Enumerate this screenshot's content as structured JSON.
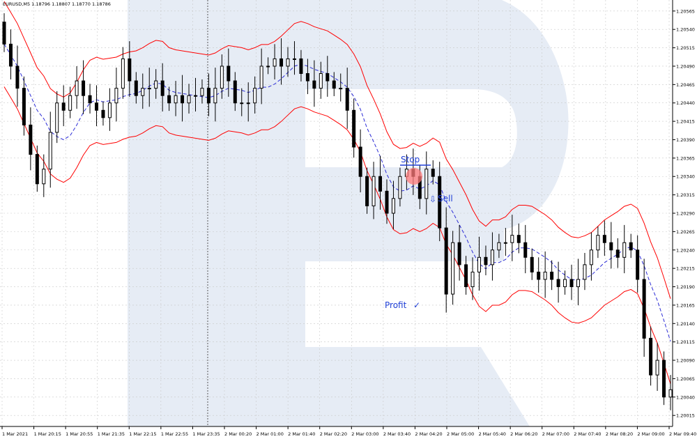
{
  "colors": {
    "watermark": "#e6ecf5",
    "grid": "#c8c8c8",
    "band": "#ff0000",
    "middle_line": "#2b2bd6",
    "candle": "#000000",
    "annotation": "#1f3fd6",
    "highlight": "#ff7a7a"
  },
  "chart_data": {
    "type": "candlestick",
    "title": "EURUSD,M5  1.18796  1.18807  1.18770  1.18786",
    "ylim": [
      1.2,
      1.2058
    ],
    "y_ticks": [
      "1.20565",
      "1.20540",
      "1.20515",
      "1.20490",
      "1.20465",
      "1.20440",
      "1.20415",
      "1.20390",
      "1.20365",
      "1.20340",
      "1.20315",
      "1.20290",
      "1.20265",
      "1.20240",
      "1.20215",
      "1.20190",
      "1.20165",
      "1.20140",
      "1.20115",
      "1.20090",
      "1.20065",
      "1.20040",
      "1.20015"
    ],
    "x_ticks": [
      "1 Mar 2021",
      "1 Mar 20:15",
      "1 Mar 20:55",
      "1 Mar 21:35",
      "1 Mar 22:15",
      "1 Mar 22:55",
      "1 Mar 23:35",
      "2 Mar 00:20",
      "2 Mar 01:00",
      "2 Mar 01:40",
      "2 Mar 02:20",
      "2 Mar 03:00",
      "2 Mar 03:40",
      "2 Mar 04:20",
      "2 Mar 05:00",
      "2 Mar 05:40",
      "2 Mar 06:20",
      "2 Mar 07:00",
      "2 Mar 07:40",
      "2 Mar 08:20",
      "2 Mar 09:00",
      "2 Mar 09:40"
    ],
    "closes": [
      1.2052,
      1.2049,
      1.2046,
      1.2041,
      1.2037,
      1.2033,
      1.2035,
      1.204,
      1.2044,
      1.2043,
      1.2045,
      1.2047,
      1.2045,
      1.2044,
      1.2043,
      1.2042,
      1.2044,
      1.2046,
      1.205,
      1.2047,
      1.2045,
      1.2046,
      1.2046,
      1.2047,
      1.2045,
      1.2044,
      1.2045,
      1.2044,
      1.2045,
      1.2045,
      1.2046,
      1.2044,
      1.2046,
      1.2049,
      1.2047,
      1.2044,
      1.2044,
      1.2044,
      1.2046,
      1.2049,
      1.2049,
      1.205,
      1.2049,
      1.205,
      1.205,
      1.2048,
      1.2047,
      1.2046,
      1.2048,
      1.2047,
      1.2046,
      1.2046,
      1.2043,
      1.2038,
      1.2034,
      1.203,
      1.2034,
      1.2032,
      1.2029,
      1.2031,
      1.2034,
      1.2035,
      1.2034,
      1.2031,
      1.2035,
      1.2034,
      1.2027,
      1.2018,
      1.2025,
      1.2022,
      1.2019,
      1.2021,
      1.2023,
      1.2022,
      1.2024,
      1.2025,
      1.2025,
      1.2026,
      1.2025,
      1.2023,
      1.2021,
      1.202,
      1.2021,
      1.202,
      1.2019,
      1.202,
      1.2019,
      1.202,
      1.2022,
      1.2024,
      1.2026,
      1.2025,
      1.2024,
      1.2023,
      1.2025,
      1.2024,
      1.202,
      1.2012,
      1.2007,
      1.2009,
      1.2004,
      1.2005
    ]
  },
  "annotations": {
    "stop_label": "Stop",
    "sell_label": "Sell",
    "sell_arrow": "⇩",
    "profit_label": "Profit",
    "profit_check": "✓"
  }
}
